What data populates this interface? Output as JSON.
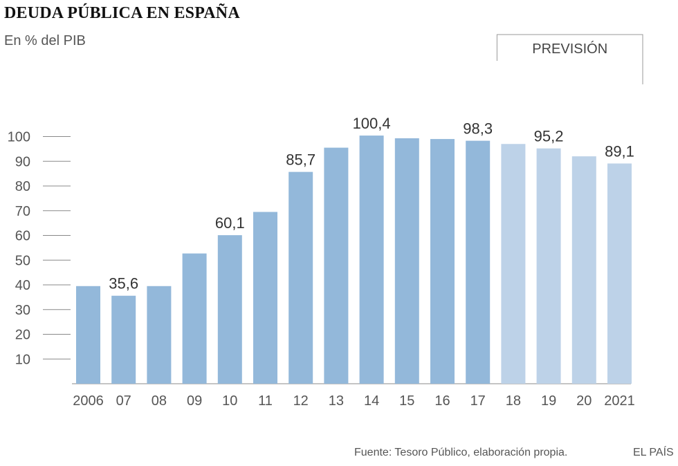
{
  "title": "DEUDA PÚBLICA EN ESPAÑA",
  "subtitle": "En % del PIB",
  "forecast_label": "PREVISIÓN",
  "source": "Fuente: Tesoro Público, elaboración propia.",
  "brand": "EL PAÍS",
  "colors": {
    "actual": "#93b8da",
    "forecast": "#bdd2e8",
    "tick": "#555555",
    "grid": "#888888"
  },
  "chart_data": {
    "type": "bar",
    "title": "DEUDA PÚBLICA EN ESPAÑA",
    "ylabel": "En % del PIB",
    "xlabel": "",
    "ylim": [
      0,
      105
    ],
    "yticks": [
      10,
      20,
      30,
      40,
      50,
      60,
      70,
      80,
      90,
      100
    ],
    "categories": [
      "2006",
      "07",
      "08",
      "09",
      "10",
      "11",
      "12",
      "13",
      "14",
      "15",
      "16",
      "17",
      "18",
      "19",
      "20",
      "2021"
    ],
    "values": [
      39.5,
      35.6,
      39.5,
      52.7,
      60.1,
      69.5,
      85.7,
      95.5,
      100.4,
      99.3,
      99.0,
      98.3,
      97.0,
      95.2,
      92.0,
      89.1
    ],
    "forecast": [
      false,
      false,
      false,
      false,
      false,
      false,
      false,
      false,
      false,
      false,
      false,
      false,
      true,
      true,
      true,
      true
    ],
    "labels": [
      "",
      "35,6",
      "",
      "",
      "60,1",
      "",
      "85,7",
      "",
      "100,4",
      "",
      "",
      "98,3",
      "",
      "95,2",
      "",
      "89,1"
    ],
    "forecast_range": [
      "18",
      "2021"
    ]
  }
}
